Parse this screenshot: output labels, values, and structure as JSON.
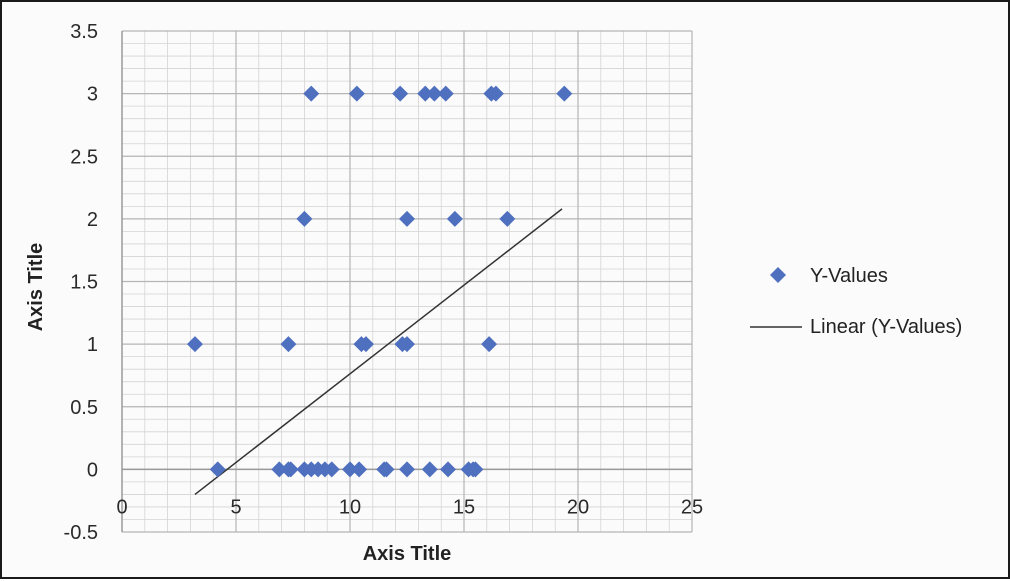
{
  "chart_data": {
    "type": "scatter",
    "xlabel": "Axis Title",
    "ylabel": "Axis Title",
    "xlim": [
      0,
      25
    ],
    "ylim": [
      -0.5,
      3.5
    ],
    "xticks": [
      "0",
      "5",
      "10",
      "15",
      "20",
      "25"
    ],
    "yticks": [
      "-0.5",
      "0",
      "0.5",
      "1",
      "1.5",
      "2",
      "2.5",
      "3",
      "3.5"
    ],
    "grid": true,
    "legend_position": "right",
    "colors": {
      "marker": "#4f6fbf",
      "trendline": "#333333",
      "grid": "#b5b5b5"
    },
    "series": [
      {
        "name": "Y-Values",
        "marker": "diamond",
        "points": [
          [
            8.3,
            3
          ],
          [
            10.3,
            3
          ],
          [
            12.2,
            3
          ],
          [
            13.3,
            3
          ],
          [
            13.7,
            3
          ],
          [
            14.2,
            3
          ],
          [
            16.2,
            3
          ],
          [
            16.4,
            3
          ],
          [
            19.4,
            3
          ],
          [
            8.0,
            2
          ],
          [
            12.5,
            2
          ],
          [
            14.6,
            2
          ],
          [
            16.9,
            2
          ],
          [
            3.2,
            1
          ],
          [
            7.3,
            1
          ],
          [
            10.5,
            1
          ],
          [
            10.7,
            1
          ],
          [
            12.3,
            1
          ],
          [
            12.5,
            1
          ],
          [
            16.1,
            1
          ],
          [
            4.2,
            0
          ],
          [
            6.9,
            0
          ],
          [
            7.3,
            0
          ],
          [
            7.4,
            0
          ],
          [
            8.0,
            0
          ],
          [
            8.3,
            0
          ],
          [
            8.6,
            0
          ],
          [
            8.9,
            0
          ],
          [
            9.2,
            0
          ],
          [
            10.0,
            0
          ],
          [
            10.4,
            0
          ],
          [
            11.5,
            0
          ],
          [
            11.6,
            0
          ],
          [
            12.5,
            0
          ],
          [
            13.5,
            0
          ],
          [
            14.3,
            0
          ],
          [
            15.2,
            0
          ],
          [
            15.4,
            0
          ],
          [
            15.5,
            0
          ]
        ]
      },
      {
        "name": "Linear (Y-Values)",
        "type": "line",
        "points": [
          [
            3.2,
            -0.2
          ],
          [
            19.3,
            2.08
          ]
        ]
      }
    ]
  }
}
